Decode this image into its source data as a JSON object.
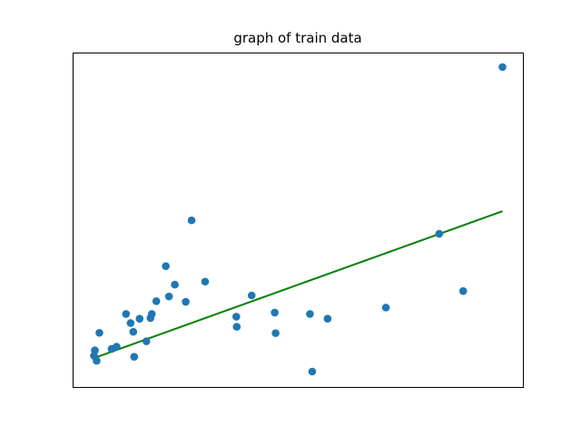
{
  "chart_data": {
    "type": "scatter",
    "title": "graph of train data",
    "xlabel": "",
    "ylabel": "",
    "xlim": [
      0,
      100
    ],
    "ylim": [
      0,
      100
    ],
    "grid": false,
    "ticks_visible": false,
    "series": [
      {
        "kind": "scatter",
        "color": "#1f77b4",
        "points": [
          [
            4.6,
            9.3
          ],
          [
            5.2,
            7.8
          ],
          [
            4.8,
            10.9
          ],
          [
            5.8,
            16.1
          ],
          [
            8.5,
            11.3
          ],
          [
            9.6,
            12.0
          ],
          [
            11.7,
            21.7
          ],
          [
            12.7,
            19.0
          ],
          [
            13.3,
            16.4
          ],
          [
            13.5,
            9.0
          ],
          [
            14.7,
            20.3
          ],
          [
            16.2,
            13.6
          ],
          [
            17.1,
            20.5
          ],
          [
            17.4,
            21.7
          ],
          [
            18.4,
            25.5
          ],
          [
            20.5,
            35.9
          ],
          [
            21.2,
            26.9
          ],
          [
            22.5,
            30.4
          ],
          [
            24.9,
            25.3
          ],
          [
            26.2,
            49.5
          ],
          [
            29.2,
            31.3
          ],
          [
            36.1,
            20.9
          ],
          [
            36.2,
            17.9
          ],
          [
            39.5,
            27.2
          ],
          [
            44.6,
            22.1
          ],
          [
            44.8,
            16.0
          ],
          [
            52.4,
            21.7
          ],
          [
            52.9,
            4.6
          ],
          [
            56.3,
            20.3
          ],
          [
            69.2,
            23.6
          ],
          [
            81.0,
            45.5
          ],
          [
            86.3,
            28.5
          ],
          [
            95.0,
            95.0
          ]
        ]
      },
      {
        "kind": "line",
        "color": "#008000",
        "points": [
          [
            4.6,
            8.6
          ],
          [
            95.0,
            52.2
          ]
        ]
      }
    ]
  }
}
